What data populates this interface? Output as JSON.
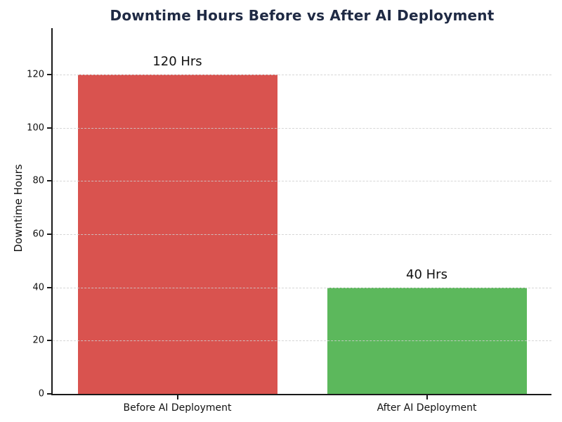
{
  "chart_data": {
    "type": "bar",
    "title": "Downtime Hours Before vs After AI Deployment",
    "ylabel": "Downtime Hours",
    "xlabel": "",
    "categories": [
      "Before AI Deployment",
      "After AI Deployment"
    ],
    "values": [
      120,
      40
    ],
    "bar_labels": [
      "120 Hrs",
      "40 Hrs"
    ],
    "bar_colors": [
      "#d9534f",
      "#5cb85c"
    ],
    "yticks": [
      0,
      20,
      40,
      60,
      80,
      100,
      120
    ],
    "ylim": [
      0,
      137.5
    ],
    "bar_width_fraction": 0.8,
    "grid": "horizontal-dashed",
    "legend_position": "none"
  },
  "style_colors": {
    "title": "#1f2a44",
    "axis": "#1a1a1a",
    "tick_text": "#111111",
    "grid": "#cfcfcf",
    "background": "#ffffff"
  }
}
